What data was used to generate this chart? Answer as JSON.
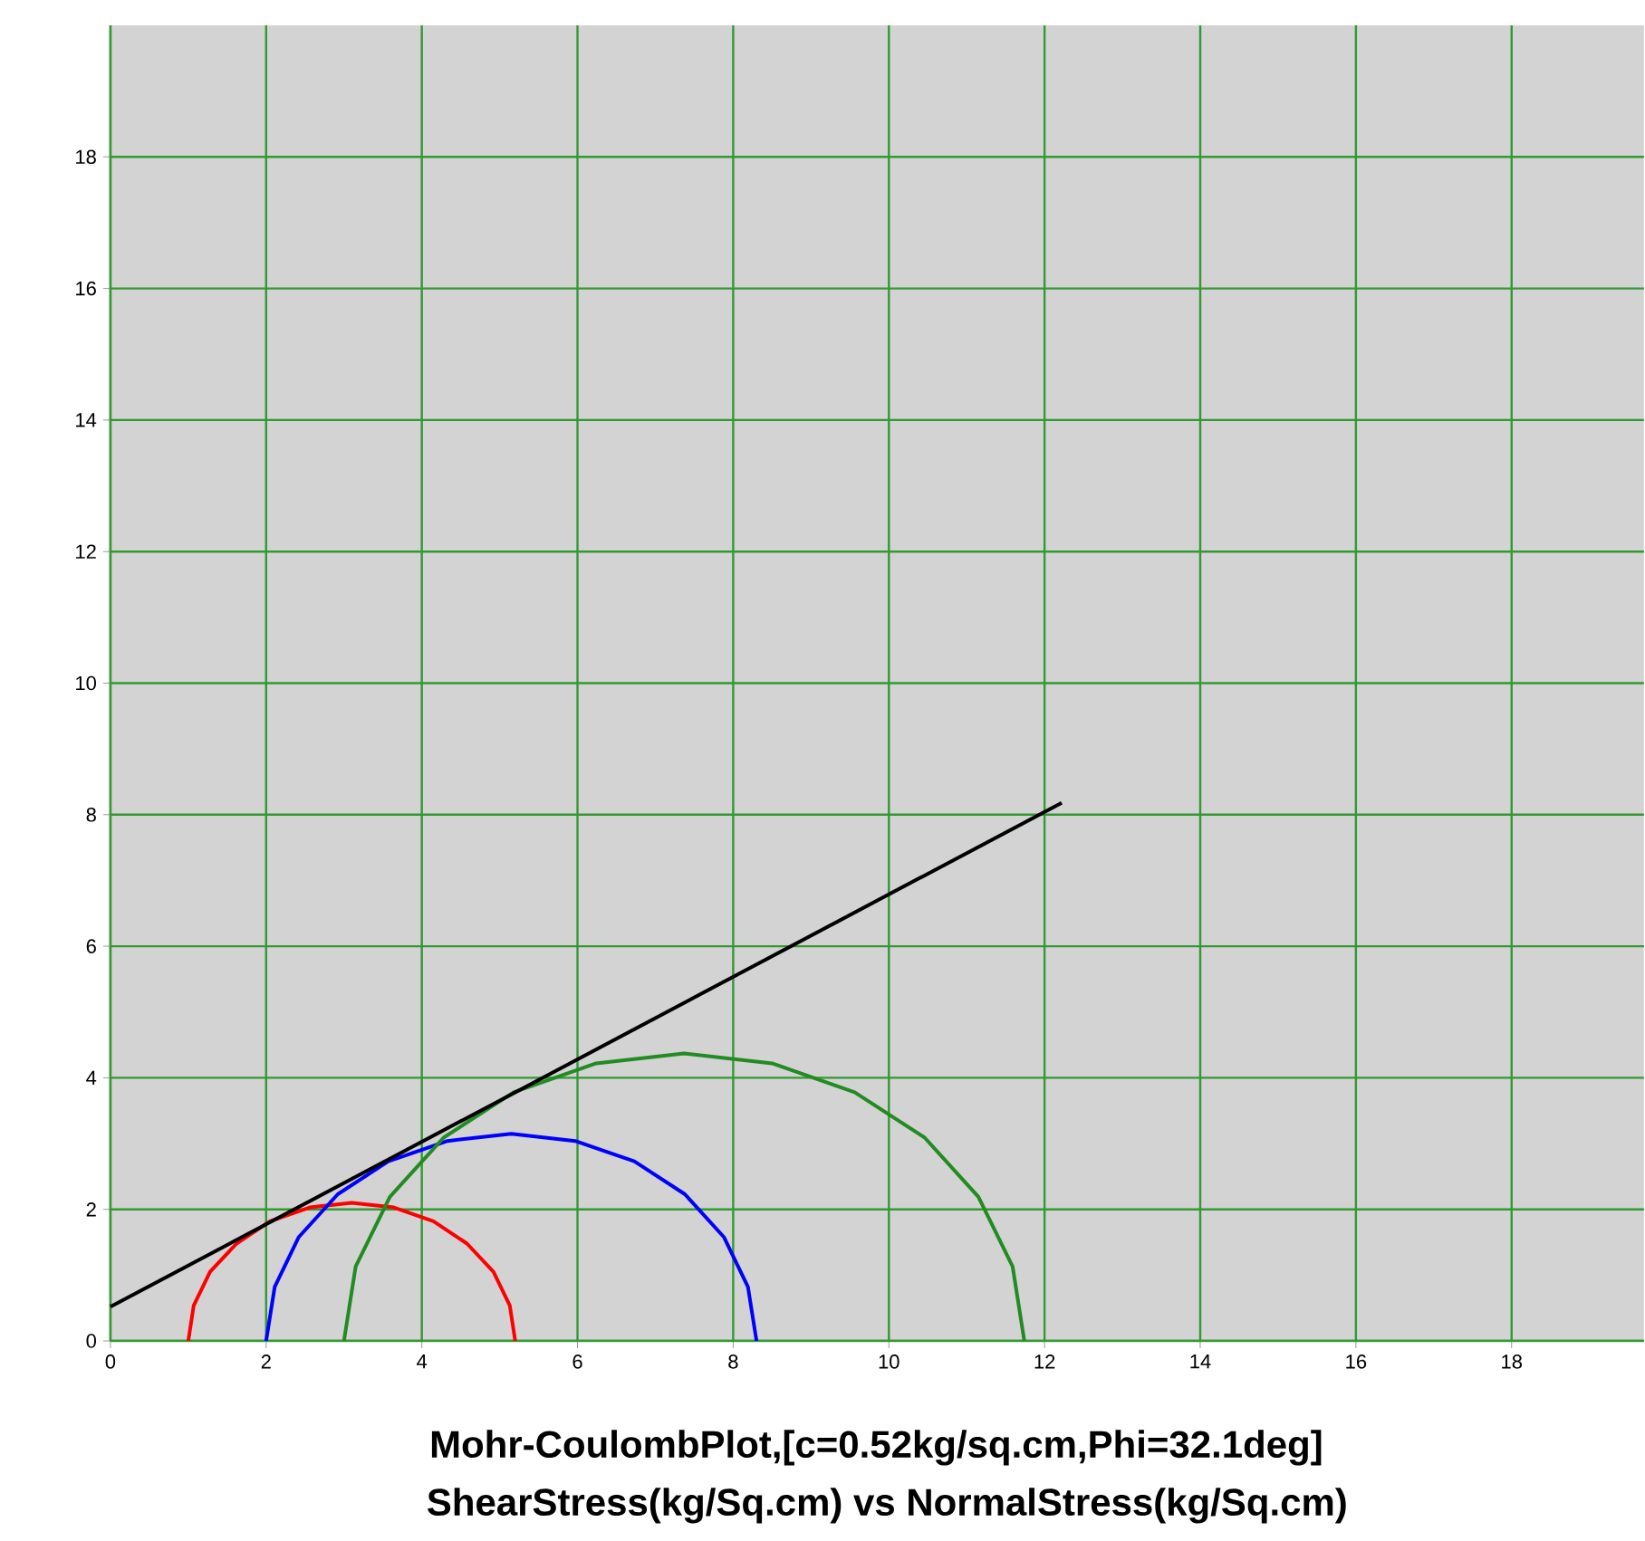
{
  "chart_data": {
    "type": "line",
    "title": "Mohr-CoulombPlot,[c=0.52kg/sq.cm,Phi=32.1deg]",
    "subtitle": "ShearStress(kg/Sq.cm) vs NormalStress(kg/Sq.cm)",
    "xlim": [
      0,
      19.7
    ],
    "ylim": [
      0,
      20
    ],
    "xticks": [
      0,
      2,
      4,
      6,
      8,
      10,
      12,
      14,
      16,
      18
    ],
    "yticks": [
      0,
      2,
      4,
      6,
      8,
      10,
      12,
      14,
      16,
      18
    ],
    "grid": true,
    "marker": "none",
    "line_style": "solid",
    "series": [
      {
        "color": "#ff0000",
        "x": [
          5.2,
          5.13,
          4.92,
          4.58,
          4.15,
          3.64,
          3.1,
          2.56,
          2.05,
          1.62,
          1.28,
          1.07,
          1.0
        ],
        "values": [
          0,
          0.54,
          1.05,
          1.48,
          1.82,
          2.03,
          2.1,
          2.03,
          1.82,
          1.48,
          1.05,
          0.54,
          0
        ]
      },
      {
        "color": "#0000ff",
        "x": [
          8.3,
          8.19,
          7.88,
          7.38,
          6.73,
          5.97,
          5.15,
          4.33,
          3.57,
          2.92,
          2.42,
          2.11,
          2.0
        ],
        "values": [
          0,
          0.82,
          1.58,
          2.23,
          2.73,
          3.04,
          3.15,
          3.04,
          2.73,
          2.23,
          1.58,
          0.82,
          0
        ]
      },
      {
        "color": "#228b22",
        "x": [
          11.74,
          11.59,
          11.15,
          10.46,
          9.56,
          8.5,
          7.37,
          6.24,
          5.18,
          4.28,
          3.59,
          3.15,
          3.0
        ],
        "values": [
          0,
          1.13,
          2.19,
          3.09,
          3.78,
          4.22,
          4.37,
          4.22,
          3.78,
          3.09,
          2.19,
          1.13,
          0
        ]
      },
      {
        "color": "#000000",
        "x": [
          0,
          12.22
        ],
        "values": [
          0.52,
          8.18
        ]
      }
    ]
  }
}
